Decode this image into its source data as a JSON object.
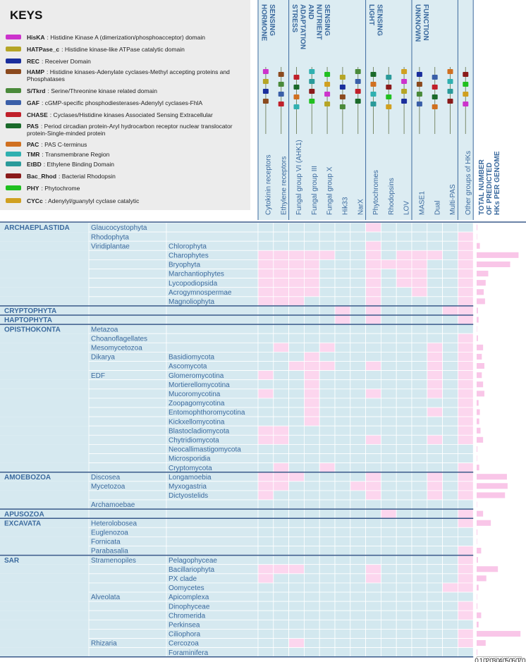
{
  "keys": {
    "title": "KEYS",
    "items": [
      {
        "abbr": "HisKA",
        "desc": "Histidine Kinase A (dimerization/phosphoacceptor) domain",
        "color": "#cc33cc"
      },
      {
        "abbr": "HATPase_c",
        "desc": "Histidine kinase-like ATPase catalytic domain",
        "color": "#b5a526"
      },
      {
        "abbr": "REC",
        "desc": "Receiver Domain",
        "color": "#1a2e9c"
      },
      {
        "abbr": "HAMP",
        "desc": "Histidine kinases-Adenylate cyclases-Methyl accepting proteins and Phosphatases",
        "color": "#8b4a1e"
      },
      {
        "abbr": "S/Tkrd",
        "desc": "Serine/Threonine kinase related domain",
        "color": "#4a8a3a"
      },
      {
        "abbr": "GAF",
        "desc": "cGMP-specific phosphodiesterases-Adenylyl cyclases-FhlA",
        "color": "#3a5fa8"
      },
      {
        "abbr": "CHASE",
        "desc": "Cyclases/Histidine kinases Associated Sensing Extracellular",
        "color": "#c0202a"
      },
      {
        "abbr": "PAS",
        "desc": "Period circadian protein-Aryl hydrocarbon receptor nuclear translocator protein-Single-minded protein",
        "color": "#1a6a2a"
      },
      {
        "abbr": "PAC",
        "desc": "PAS C-terminus",
        "color": "#d07020"
      },
      {
        "abbr": "TMR",
        "desc": "Transmembrane Region",
        "color": "#30b0b0"
      },
      {
        "abbr": "EtBD",
        "desc": "Ethylene Binding Domain",
        "color": "#2a9a9a"
      },
      {
        "abbr": "Bac_Rhod",
        "desc": "Bacterial Rhodopsin",
        "color": "#8a1a1a"
      },
      {
        "abbr": "PHY",
        "desc": "Phytochrome",
        "color": "#20c020"
      },
      {
        "abbr": "CYCc",
        "desc": "Adenylyl/guanylyl cyclase catalytic",
        "color": "#d0a020"
      }
    ]
  },
  "groups": [
    {
      "lines": [
        "HORMONE",
        "SENSING"
      ],
      "from": 0,
      "to": 1
    },
    {
      "lines": [
        "STRESS",
        "ADAPTATION",
        "AND",
        "NUTRIENT",
        "SENSING"
      ],
      "from": 2,
      "to": 6
    },
    {
      "lines": [
        "LIGHT",
        "SENSING"
      ],
      "from": 7,
      "to": 9
    },
    {
      "lines": [
        "UNKNOWN",
        "FUNCTION"
      ],
      "from": 10,
      "to": 12
    }
  ],
  "columns": [
    "Cytokinin receptors",
    "Ethylene receptors",
    "Fungal group VI (AHK1)",
    "Fungal group III",
    "Fungal group X",
    "Hik33",
    "NarX",
    "Phytochromes",
    "Rhodopsins",
    "LOV",
    "MASE1",
    "Dual",
    "Multi-PAS",
    "Other groups of HKs"
  ],
  "total_header": [
    "TOTAL NUMBER",
    "OF PREDICTED",
    "HKs PER GENOME"
  ],
  "total_axis": {
    "xlim": [
      0,
      70
    ],
    "xticks": [
      0,
      10,
      20,
      30,
      40,
      50,
      60,
      70
    ],
    "color": "#f9c6e8"
  },
  "rows": [
    {
      "group": "ARCHAEPLASTIDA",
      "subgroup": "Glaucocystophyta",
      "present": [
        7
      ],
      "total": 1
    },
    {
      "subgroup": "Rhodophyta",
      "present": [
        13
      ],
      "total": 0
    },
    {
      "subgroup": "Viridiplantae",
      "taxon": "Chlorophyta",
      "present": [
        7,
        13
      ],
      "total": 5
    },
    {
      "taxon": "Charophytes",
      "present": [
        0,
        1,
        2,
        3,
        4,
        7,
        9,
        10,
        11,
        13
      ],
      "total": 65
    },
    {
      "taxon": "Bryophyta",
      "present": [
        0,
        1,
        2,
        3,
        7,
        8,
        9,
        10,
        13
      ],
      "total": 52
    },
    {
      "taxon": "Marchantiophytes",
      "present": [
        0,
        1,
        2,
        3,
        7,
        9,
        10,
        13
      ],
      "total": 18
    },
    {
      "taxon": "Lycopodiopsida",
      "present": [
        0,
        1,
        2,
        3,
        7,
        9,
        10,
        13
      ],
      "total": 14
    },
    {
      "taxon": "Acrogymnospermae",
      "present": [
        0,
        1,
        2,
        3,
        7,
        10,
        13
      ],
      "total": 11
    },
    {
      "taxon": "Magnoliophyta",
      "present": [
        0,
        1,
        2,
        7,
        13
      ],
      "total": 13
    },
    {
      "group": "CRYPTOPHYTA",
      "present": [
        5,
        7,
        12,
        13
      ],
      "total": 2
    },
    {
      "group": "HAPTOPHYTA",
      "present": [
        5,
        7,
        13
      ],
      "total": 3
    },
    {
      "group": "OPISTHOKONTA",
      "subgroup": "Metazoa",
      "present": [],
      "total": 0.5
    },
    {
      "subgroup": "Choanoflagellates",
      "present": [
        13
      ],
      "total": 2
    },
    {
      "subgroup": "Mesomycetozoa",
      "present": [
        1,
        4,
        11,
        13
      ],
      "total": 10
    },
    {
      "subgroup": "Dikarya",
      "taxon": "Basidiomycota",
      "present": [
        3,
        11,
        13
      ],
      "total": 8
    },
    {
      "taxon": "Ascomycota",
      "present": [
        2,
        3,
        4,
        7,
        11,
        13
      ],
      "total": 12
    },
    {
      "subgroup": "EDF",
      "taxon": "Glomeromycotina",
      "present": [
        0,
        3,
        11,
        13
      ],
      "total": 8
    },
    {
      "taxon": "Mortierellomycotina",
      "present": [
        3,
        11,
        13
      ],
      "total": 10
    },
    {
      "taxon": "Mucoromycotina",
      "present": [
        0,
        3,
        7,
        11,
        13
      ],
      "total": 12
    },
    {
      "taxon": "Zoopagomycotina",
      "present": [
        3,
        13
      ],
      "total": 3
    },
    {
      "taxon": "Entomophthoromycotina",
      "present": [
        3,
        11,
        13
      ],
      "total": 5
    },
    {
      "taxon": "Kickxellomycotina",
      "present": [
        3,
        13
      ],
      "total": 4
    },
    {
      "taxon": "Blastocladiomycota",
      "present": [
        0,
        1,
        13
      ],
      "total": 6
    },
    {
      "taxon": "Chytridiomycota",
      "present": [
        0,
        1,
        7,
        11,
        13
      ],
      "total": 10
    },
    {
      "taxon": "Neocallimastigomycota",
      "present": [],
      "total": 1
    },
    {
      "taxon": "Microsporidia",
      "present": [],
      "total": 0
    },
    {
      "taxon": "Cryptomycota",
      "present": [
        1,
        4,
        13
      ],
      "total": 4
    },
    {
      "group": "AMOEBOZOA",
      "subgroup": "Discosea",
      "taxon": "Longamoebia",
      "present": [
        0,
        1,
        2,
        7,
        11,
        13
      ],
      "total": 47
    },
    {
      "subgroup": "Mycetozoa",
      "taxon": "Myxogastria",
      "present": [
        0,
        1,
        6,
        7,
        11,
        13
      ],
      "total": 48
    },
    {
      "taxon": "Dictyostelids",
      "present": [
        0,
        7,
        11,
        13
      ],
      "total": 44
    },
    {
      "subgroup": "Archamoebae",
      "present": [],
      "total": 0
    },
    {
      "group": "APUSOZOA",
      "present": [
        8,
        13
      ],
      "total": 10
    },
    {
      "group": "EXCAVATA",
      "subgroup": "Heterolobosea",
      "present": [
        13
      ],
      "total": 22
    },
    {
      "subgroup": "Euglenozoa",
      "present": [],
      "total": 1
    },
    {
      "subgroup": "Fornicata",
      "present": [],
      "total": 0
    },
    {
      "subgroup": "Parabasalia",
      "present": [
        13
      ],
      "total": 7
    },
    {
      "group": "SAR",
      "subgroup": "Stramenopiles",
      "taxon": "Pelagophyceae",
      "present": [
        13
      ],
      "total": 2
    },
    {
      "taxon": "Bacillariophyta",
      "present": [
        0,
        1,
        2,
        7,
        13
      ],
      "total": 33
    },
    {
      "taxon": "PX clade",
      "present": [
        0,
        7,
        13
      ],
      "total": 15
    },
    {
      "taxon": "Oomycetes",
      "present": [
        12,
        13
      ],
      "total": 3
    },
    {
      "subgroup": "Alveolata",
      "taxon": "Apicomplexa",
      "present": [],
      "total": 0
    },
    {
      "taxon": "Dinophyceae",
      "present": [
        13
      ],
      "total": 1
    },
    {
      "taxon": "Chromerida",
      "present": [
        13
      ],
      "total": 7
    },
    {
      "taxon": "Perkinsea",
      "present": [],
      "total": 3
    },
    {
      "taxon": "Ciliophora",
      "present": [
        13
      ],
      "total": 68
    },
    {
      "subgroup": "Rhizaria",
      "taxon": "Cercozoa",
      "present": [
        2,
        13
      ],
      "total": 14
    },
    {
      "taxon": "Foraminifera",
      "present": [],
      "total": 1
    }
  ]
}
